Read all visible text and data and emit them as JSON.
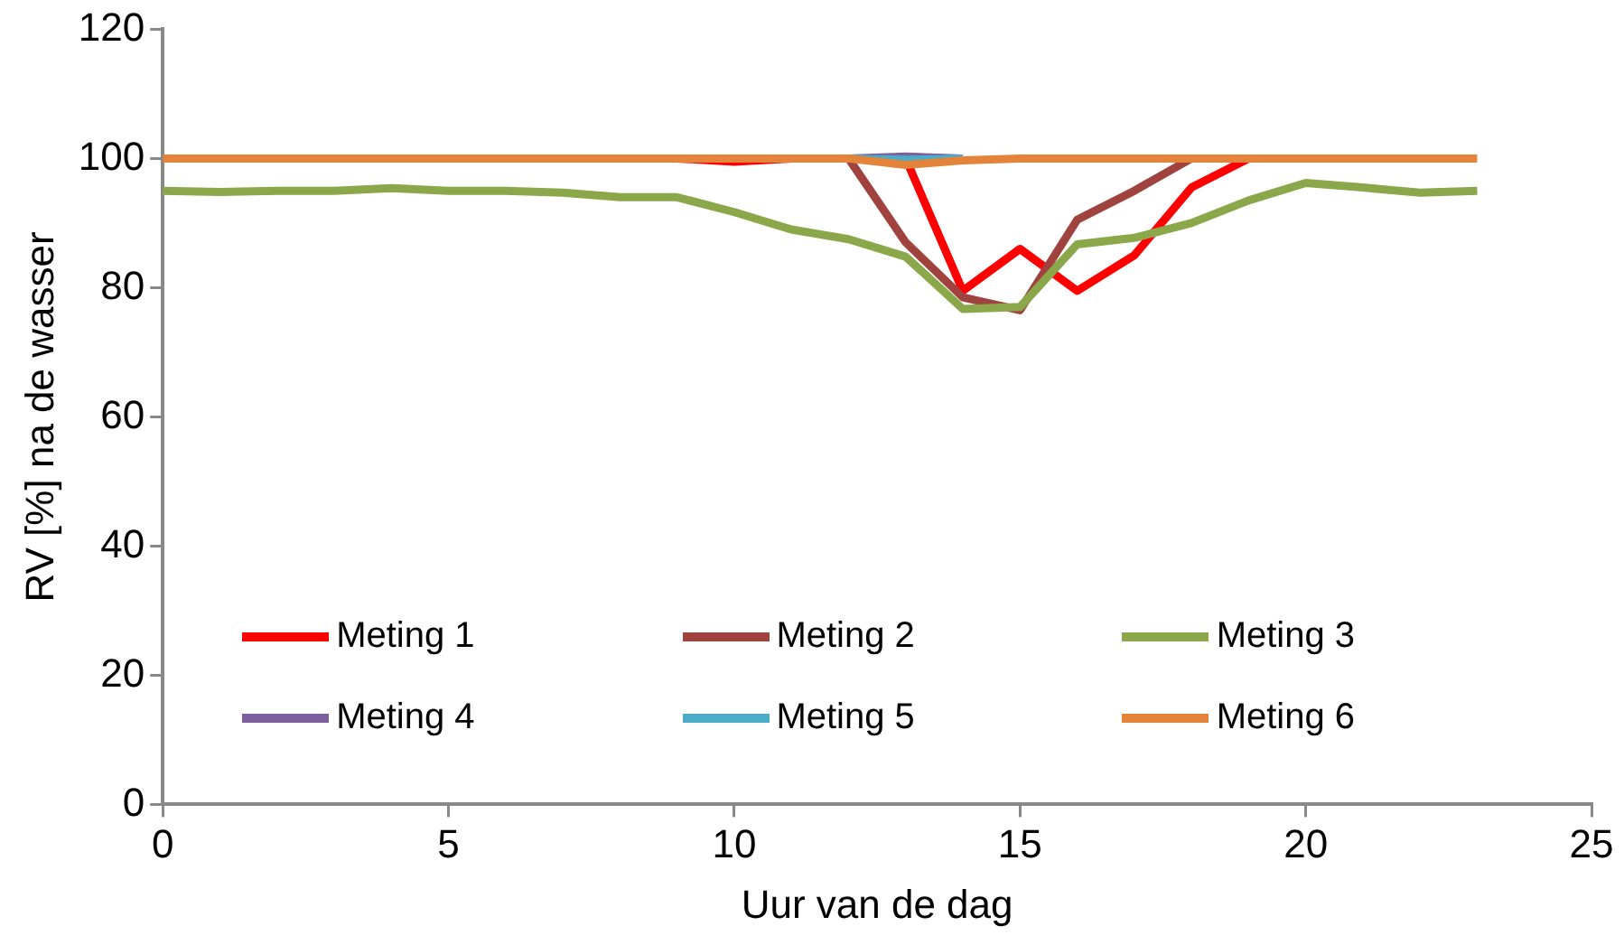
{
  "chart_data": {
    "type": "line",
    "xlabel": "Uur van de dag",
    "ylabel": "RV [%] na de wasser",
    "x": [
      0,
      1,
      2,
      3,
      4,
      5,
      6,
      7,
      8,
      9,
      10,
      11,
      12,
      13,
      14,
      15,
      16,
      17,
      18,
      19,
      20,
      21,
      22,
      23
    ],
    "xlim": [
      0,
      25
    ],
    "xticks": [
      0,
      5,
      10,
      15,
      20,
      25
    ],
    "ylim": [
      0,
      120
    ],
    "yticks": [
      0,
      20,
      40,
      60,
      80,
      100,
      120
    ],
    "grid": false,
    "legend": "bottom",
    "marker": "none",
    "line_style": "solid",
    "series": [
      {
        "name": "Meting 1",
        "color": "#ff0000",
        "values": [
          null,
          null,
          null,
          null,
          null,
          null,
          null,
          null,
          null,
          100,
          99.5,
          100,
          null,
          100,
          79.5,
          86,
          79.5,
          85,
          95.5,
          100,
          null,
          null,
          null,
          null
        ]
      },
      {
        "name": "Meting 2",
        "color": "#a0433f",
        "values": [
          null,
          null,
          null,
          null,
          null,
          null,
          null,
          null,
          null,
          null,
          null,
          null,
          100,
          87,
          78.5,
          76.5,
          90.5,
          95,
          100,
          null,
          null,
          null,
          null,
          null
        ]
      },
      {
        "name": "Meting 3",
        "color": "#8aa74a",
        "values": [
          95,
          94.8,
          95,
          95,
          95.4,
          95,
          95,
          94.7,
          94,
          94,
          91.7,
          89,
          87.5,
          84.8,
          76.7,
          77,
          86.7,
          87.7,
          90,
          93.5,
          96.2,
          95.5,
          94.7,
          95
        ]
      },
      {
        "name": "Meting 4",
        "color": "#7d5fa0",
        "values": [
          null,
          null,
          null,
          null,
          null,
          null,
          null,
          null,
          null,
          null,
          null,
          null,
          100,
          100.3,
          100,
          null,
          null,
          null,
          null,
          null,
          null,
          null,
          null,
          null
        ]
      },
      {
        "name": "Meting 5",
        "color": "#4aacc6",
        "values": [
          null,
          null,
          null,
          null,
          null,
          null,
          null,
          null,
          null,
          null,
          null,
          null,
          100,
          99.8,
          100,
          null,
          null,
          null,
          null,
          null,
          null,
          null,
          null,
          null
        ]
      },
      {
        "name": "Meting 6",
        "color": "#e4843a",
        "values": [
          100,
          100,
          100,
          100,
          100,
          100,
          100,
          100,
          100,
          100,
          100,
          100,
          100,
          99,
          99.7,
          100,
          100,
          100,
          100,
          100,
          100,
          100,
          100,
          100
        ]
      }
    ]
  }
}
